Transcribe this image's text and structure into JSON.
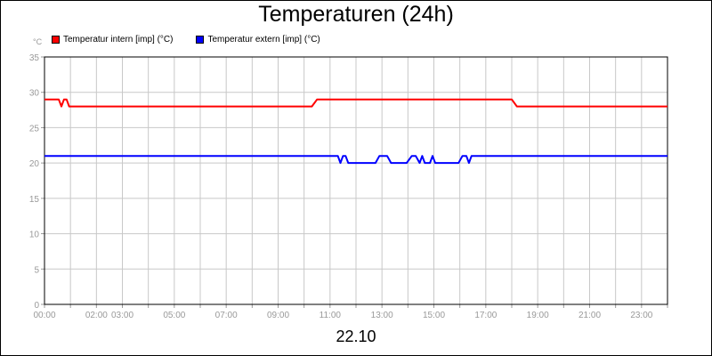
{
  "chart_data": {
    "type": "line",
    "title": "Temperaturen (24h)",
    "y_unit": "°C",
    "date_label": "22.10",
    "ylim": [
      0,
      35
    ],
    "y_ticks": [
      "0",
      "5",
      "10",
      "15",
      "20",
      "25",
      "30",
      "35"
    ],
    "x_range_hours": [
      0,
      24
    ],
    "x_ticks": [
      {
        "h": 0,
        "label": "00:00"
      },
      {
        "h": 2,
        "label": "02:00"
      },
      {
        "h": 3,
        "label": "03:00"
      },
      {
        "h": 5,
        "label": "05:00"
      },
      {
        "h": 7,
        "label": "07:00"
      },
      {
        "h": 9,
        "label": "09:00"
      },
      {
        "h": 11,
        "label": "11:00"
      },
      {
        "h": 13,
        "label": "13:00"
      },
      {
        "h": 15,
        "label": "15:00"
      },
      {
        "h": 17,
        "label": "17:00"
      },
      {
        "h": 19,
        "label": "19:00"
      },
      {
        "h": 21,
        "label": "21:00"
      },
      {
        "h": 23,
        "label": "23:00"
      }
    ],
    "grid": true,
    "legend_position": "top-left",
    "series": [
      {
        "name": "Temperatur intern [imp] (°C)",
        "color": "#ff0000",
        "points": [
          [
            0,
            29
          ],
          [
            0.55,
            29
          ],
          [
            0.65,
            28
          ],
          [
            0.75,
            29
          ],
          [
            0.85,
            29
          ],
          [
            0.95,
            28
          ],
          [
            10.3,
            28
          ],
          [
            10.5,
            29
          ],
          [
            18.0,
            29
          ],
          [
            18.2,
            28
          ],
          [
            24,
            28
          ]
        ]
      },
      {
        "name": "Temperatur extern [imp] (°C)",
        "color": "#0000ff",
        "points": [
          [
            0,
            21
          ],
          [
            11.3,
            21
          ],
          [
            11.4,
            20
          ],
          [
            11.5,
            21
          ],
          [
            11.6,
            21
          ],
          [
            11.7,
            20
          ],
          [
            12.75,
            20
          ],
          [
            12.9,
            21
          ],
          [
            13.2,
            21
          ],
          [
            13.35,
            20
          ],
          [
            13.95,
            20
          ],
          [
            14.15,
            21
          ],
          [
            14.3,
            21
          ],
          [
            14.45,
            20
          ],
          [
            14.55,
            21
          ],
          [
            14.65,
            20
          ],
          [
            14.85,
            20
          ],
          [
            14.95,
            21
          ],
          [
            15.05,
            20
          ],
          [
            15.95,
            20
          ],
          [
            16.1,
            21
          ],
          [
            16.25,
            21
          ],
          [
            16.35,
            20
          ],
          [
            16.45,
            21
          ],
          [
            24,
            21
          ]
        ]
      }
    ]
  }
}
